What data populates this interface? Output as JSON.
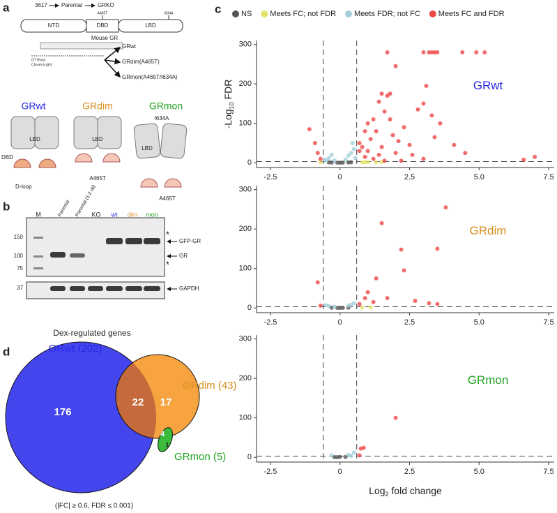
{
  "panel_letters": [
    "a",
    "b",
    "c",
    "d"
  ],
  "panel_a": {
    "flow": [
      "3617",
      "Parental",
      "GRKO"
    ],
    "domains": [
      "NTD",
      "DBD",
      "LBD"
    ],
    "mutations": [
      "A465T",
      "I634A"
    ],
    "gene": "Mouse GR",
    "locus": [
      "GT Rosa",
      "Chrom 6 qE3"
    ],
    "lines": [
      "GRwt",
      "GRdim(A465T)",
      "GRmon(A465T/I634A)"
    ],
    "models": {
      "wt": {
        "name": "GRwt",
        "labels": [
          "LBD",
          "DBD",
          "D-loop"
        ]
      },
      "dim": {
        "name": "GRdim",
        "labels": [
          "LBD",
          "A465T"
        ]
      },
      "mon": {
        "name": "GRmon",
        "labels": [
          "I634A",
          "LBD",
          "A465T"
        ]
      }
    }
  },
  "panel_b": {
    "lanes": [
      "M",
      "Parental",
      "Parental (1:2 dil)",
      "KO",
      "wt",
      "dim",
      "mon"
    ],
    "markers": [
      "150",
      "100",
      "75",
      "37"
    ],
    "bands": [
      "*",
      "GFP-GR",
      "GR",
      "*",
      "GAPDH"
    ]
  },
  "panel_d": {
    "title": "Dex-regulated genes",
    "sets": [
      "GRwt (202)",
      "GRdim (43)",
      "GRmon (5)"
    ],
    "regions": [
      "176",
      "22",
      "17",
      "4",
      "1"
    ],
    "note": "(|FC| ≥ 0.6, FDR ≤ 0.001)"
  },
  "chart_data": [
    {
      "type": "scatter",
      "label": "GRwt",
      "label_color": "#2a2ae6",
      "ylabel": {
        "pre": "-Log",
        "sub": "10",
        "post": " FDR"
      },
      "xlim": [
        -3.0,
        7.7
      ],
      "ylim": [
        -12,
        310
      ],
      "xticks": [
        -2.5,
        0,
        2.5,
        {
          "value": 5,
          "label": "5.0"
        },
        7.5
      ],
      "yticks": [
        0,
        100,
        200,
        300
      ],
      "thresholds": {
        "x": [
          -0.6,
          0.6
        ],
        "y": 3
      },
      "series": [
        {
          "name": "NS",
          "color": "#555555",
          "x": [
            -0.3,
            -0.1,
            0,
            0.1,
            0.3,
            -0.4,
            0.4
          ],
          "values": [
            0.5,
            0.3,
            0.2,
            0.3,
            0.8,
            1,
            1.2
          ]
        },
        {
          "name": "Meets FC; not FDR",
          "color": "#e3e36a",
          "x": [
            0.8,
            1.0,
            1.3,
            1.5,
            -0.7,
            0.9
          ],
          "values": [
            1,
            1.5,
            1,
            2,
            1,
            2
          ]
        },
        {
          "name": "Meets FDR; not FC",
          "color": "#a3cfd9",
          "x": [
            -0.5,
            -0.4,
            -0.3,
            0.3,
            0.4,
            0.5,
            0.55,
            -0.55,
            0.2,
            -0.2,
            0.45
          ],
          "values": [
            5,
            12,
            20,
            18,
            25,
            35,
            12,
            8,
            8,
            6,
            50
          ]
        },
        {
          "name": "Meets FC and FDR",
          "color": "#ee4848",
          "x": [
            3.0,
            3.2,
            3.3,
            3.4,
            3.5,
            4.4,
            4.9,
            5.2,
            1.7,
            2.0,
            1.5,
            1.7,
            1.8,
            1.4,
            1.6,
            1.2,
            1.0,
            0.9,
            1.3,
            2.3,
            3.1,
            3.0,
            3.3,
            3.6,
            4.1,
            3.4,
            2.1,
            1.1,
            0.8,
            1.5,
            2.0,
            2.6,
            3.0,
            4.5,
            6.6,
            7.0,
            -1.1,
            -0.8,
            -0.7,
            0.7,
            0.9,
            1.2,
            2.2,
            1.6,
            0.7,
            1.9,
            1.4,
            1.0,
            -0.9,
            2.8,
            1.8,
            2.5
          ],
          "values": [
            280,
            280,
            280,
            280,
            280,
            280,
            280,
            280,
            280,
            245,
            175,
            170,
            175,
            155,
            130,
            110,
            100,
            80,
            80,
            90,
            195,
            150,
            120,
            100,
            45,
            65,
            55,
            60,
            40,
            40,
            25,
            20,
            10,
            25,
            8,
            15,
            85,
            25,
            10,
            30,
            15,
            10,
            5,
            5,
            50,
            70,
            20,
            30,
            50,
            135,
            110,
            45
          ]
        }
      ]
    },
    {
      "type": "scatter",
      "label": "GRdim",
      "label_color": "#d9901e",
      "xlim": [
        -3.0,
        7.7
      ],
      "ylim": [
        -12,
        310
      ],
      "xticks": [
        -2.5,
        0,
        2.5,
        {
          "value": 5,
          "label": "5.0"
        },
        7.5
      ],
      "yticks": [
        0,
        100,
        200,
        300
      ],
      "thresholds": {
        "x": [
          -0.6,
          0.6
        ],
        "y": 3
      },
      "series": [
        {
          "color": "#555555",
          "x": [
            -0.3,
            -0.1,
            0,
            0.1,
            0.3
          ],
          "values": [
            0.5,
            0.3,
            0.2,
            0.4,
            0.8
          ]
        },
        {
          "color": "#e3e36a",
          "x": [
            0.8,
            1.1
          ],
          "values": [
            1,
            1.5
          ]
        },
        {
          "color": "#a3cfd9",
          "x": [
            -0.4,
            0.3,
            0.5,
            0.4,
            -0.2,
            -0.5
          ],
          "values": [
            5,
            6,
            12,
            8,
            3,
            7
          ]
        },
        {
          "color": "#ee4848",
          "x": [
            3.8,
            1.5,
            2.2,
            3.5,
            2.3,
            1.3,
            -0.8,
            1.7,
            1.0,
            0.9,
            2.7,
            3.2,
            3.5,
            1.2,
            0.7,
            -0.7
          ],
          "values": [
            255,
            215,
            148,
            150,
            95,
            75,
            65,
            25,
            40,
            25,
            18,
            12,
            10,
            15,
            10,
            6
          ]
        }
      ]
    },
    {
      "type": "scatter",
      "label": "GRmon",
      "label_color": "#23a323",
      "xlabel": {
        "pre": "Log",
        "sub": "2",
        "post": " fold change"
      },
      "xlim": [
        -3.0,
        7.7
      ],
      "ylim": [
        -12,
        310
      ],
      "xticks": [
        -2.5,
        0,
        2.5,
        {
          "value": 5,
          "label": "5.0"
        },
        7.5
      ],
      "yticks": [
        0,
        100,
        200,
        300
      ],
      "thresholds": {
        "x": [
          -0.6,
          0.6
        ],
        "y": 3
      },
      "series": [
        {
          "color": "#555555",
          "x": [
            0,
            -0.2,
            0.2,
            -0.1
          ],
          "values": [
            1,
            0.5,
            0.8,
            0.3
          ]
        },
        {
          "color": "#e3e36a",
          "x": [],
          "values": []
        },
        {
          "color": "#a3cfd9",
          "x": [
            -0.3,
            0.3,
            0.5,
            0.4
          ],
          "values": [
            5,
            6,
            12,
            4
          ]
        },
        {
          "color": "#ee4848",
          "x": [
            2.0,
            0.75,
            0.85,
            0.7
          ],
          "values": [
            100,
            22,
            24,
            5
          ]
        }
      ]
    }
  ]
}
